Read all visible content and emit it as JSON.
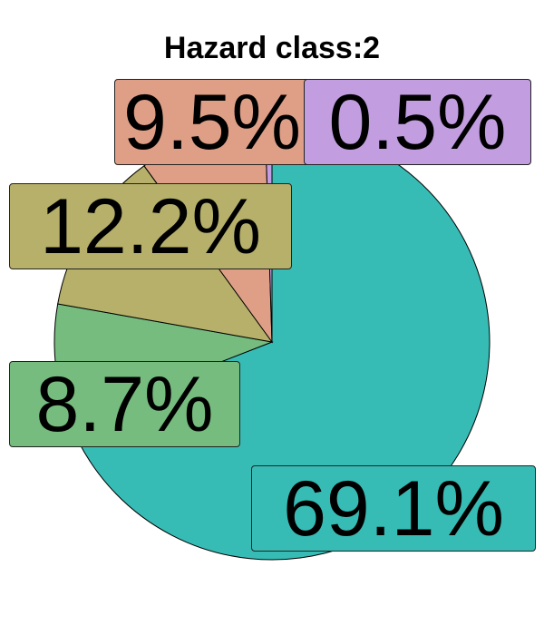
{
  "chart_data": {
    "type": "pie",
    "title": "Hazard class:2",
    "slices": [
      {
        "label": "69.1%",
        "value": 69.1,
        "color": "#37bcb5"
      },
      {
        "label": "8.7%",
        "value": 8.7,
        "color": "#76bc7f"
      },
      {
        "label": "12.2%",
        "value": 12.2,
        "color": "#b6b06a"
      },
      {
        "label": "9.5%",
        "value": 9.5,
        "color": "#df9f87"
      },
      {
        "label": "0.5%",
        "value": 0.5,
        "color": "#c29ee0"
      }
    ],
    "start": "12 o'clock",
    "direction": "clockwise",
    "legend": "none"
  }
}
